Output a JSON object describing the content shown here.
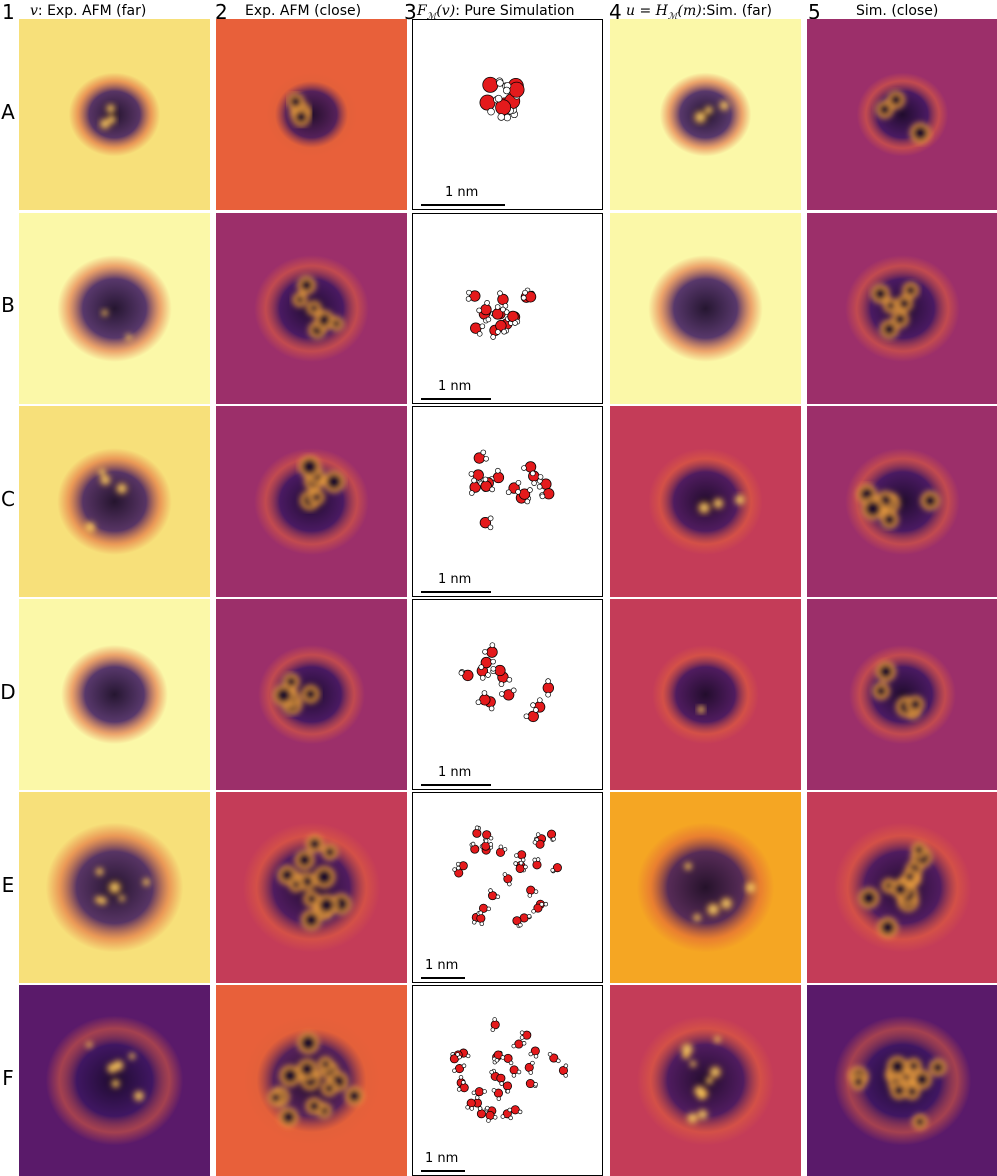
{
  "columns": [
    {
      "num": "1",
      "math": "v",
      "label": ": Exp. AFM (far)"
    },
    {
      "num": "2",
      "math": "",
      "label": "Exp. AFM (close)"
    },
    {
      "num": "3",
      "math": "F",
      "sub": "ℳ",
      "math2": "(v)",
      "label": ": Pure Simulation"
    },
    {
      "num": "4",
      "math": "u = H",
      "sub": "ℳ",
      "math2": "(m)",
      "label": ":Sim. (far)"
    },
    {
      "num": "5",
      "math": "",
      "label": "Sim. (close)"
    }
  ],
  "rows": [
    {
      "label": "A",
      "scale": "1 nm"
    },
    {
      "label": "B",
      "scale": "1 nm"
    },
    {
      "label": "C",
      "scale": "1 nm"
    },
    {
      "label": "D",
      "scale": "1 nm"
    },
    {
      "label": "E",
      "scale": "1 nm"
    },
    {
      "label": "F",
      "scale": "1 nm"
    }
  ],
  "colors": {
    "bg_yellow": "#f7e07a",
    "bg_orange": "#e8603a",
    "bg_magenta": "#9c2f6a",
    "bg_pale": "#fbf8a8",
    "bg_red": "#c43c58",
    "bg_gold": "#f5a623",
    "bg_purple": "#5a1a6a",
    "dark": "#1a0a2a",
    "bright": "#fff0a0",
    "oxygen": "#e41a1c",
    "hydrogen": "#ffffff"
  }
}
